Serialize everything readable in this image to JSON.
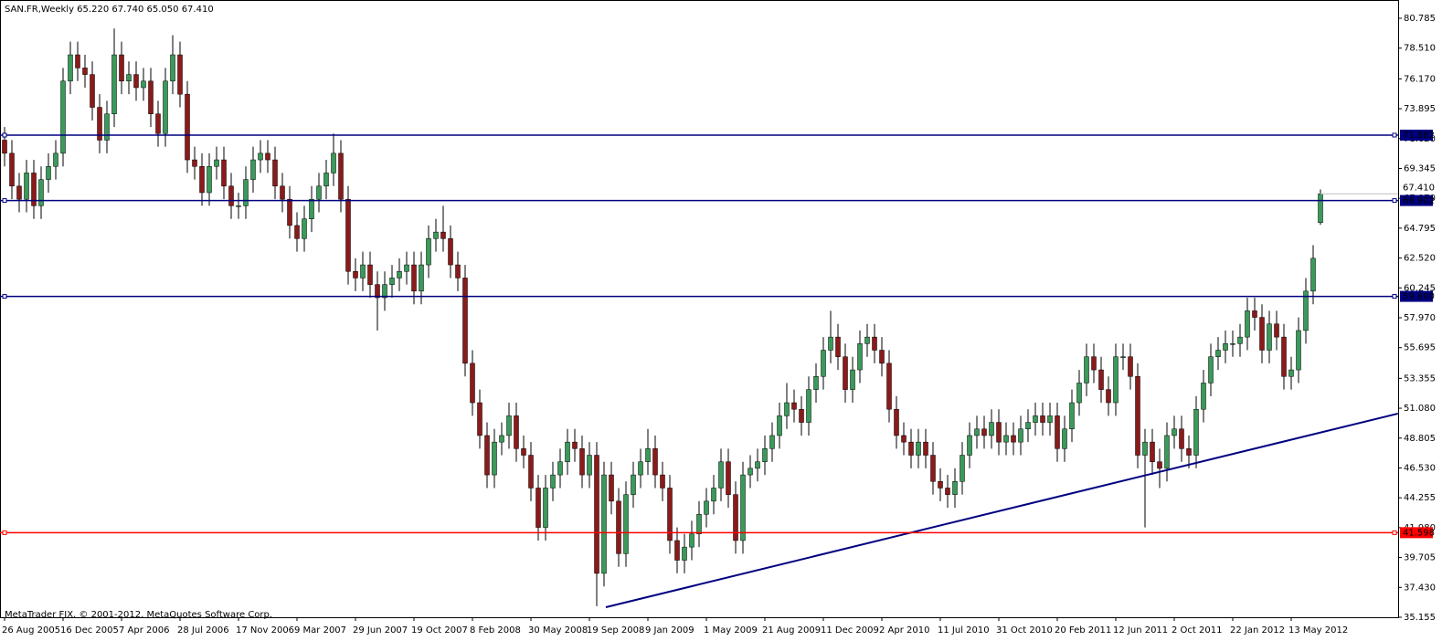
{
  "chart_data": {
    "type": "candlestick",
    "title": "SAN.FR,Weekly  65.220 67.740 65.050 67.410",
    "footer": "MetaTrader FIX, © 2001-2012, MetaQuotes Software Corp.",
    "up_color": "#3a9a5a",
    "down_color": "#8b1a1a",
    "wick_color": "#000000",
    "categories": [
      "26 Aug 2005",
      null,
      null,
      null,
      null,
      null,
      null,
      null,
      "16 Dec 2005",
      null,
      null,
      null,
      null,
      null,
      null,
      null,
      "7 Apr 2006",
      null,
      null,
      null,
      null,
      null,
      null,
      null,
      "28 Jul 2006",
      null,
      null,
      null,
      null,
      null,
      null,
      null,
      "17 Nov 2006",
      null,
      null,
      null,
      null,
      null,
      null,
      null,
      "9 Mar 2007",
      null,
      null,
      null,
      null,
      null,
      null,
      null,
      "29 Jun 2007",
      null,
      null,
      null,
      null,
      null,
      null,
      null,
      "19 Oct 2007",
      null,
      null,
      null,
      null,
      null,
      null,
      null,
      "8 Feb 2008",
      null,
      null,
      null,
      null,
      null,
      null,
      null,
      "30 May 2008",
      null,
      null,
      null,
      null,
      null,
      null,
      null,
      "19 Sep 2008",
      null,
      null,
      null,
      null,
      null,
      null,
      null,
      "9 Jan 2009",
      null,
      null,
      null,
      null,
      null,
      null,
      null,
      "1 May 2009",
      null,
      null,
      null,
      null,
      null,
      null,
      null,
      "21 Aug 2009",
      null,
      null,
      null,
      null,
      null,
      null,
      null,
      "11 Dec 2009",
      null,
      null,
      null,
      null,
      null,
      null,
      null,
      "2 Apr 2010",
      null,
      null,
      null,
      null,
      null,
      null,
      null,
      "11 Jul 2010",
      null,
      null,
      null,
      null,
      null,
      null,
      null,
      "31 Oct 2010",
      null,
      null,
      null,
      null,
      null,
      null,
      null,
      "20 Feb 2011",
      null,
      null,
      null,
      null,
      null,
      null,
      null,
      "12 Jun 2011",
      null,
      null,
      null,
      null,
      null,
      null,
      null,
      "2 Oct 2011",
      null,
      null,
      null,
      null,
      null,
      null,
      null,
      "22 Jan 2012",
      null,
      null,
      null,
      null,
      null,
      null,
      null,
      "13 May 2012",
      null,
      null,
      null,
      null
    ],
    "open": [
      71.5,
      70.5,
      68,
      67,
      69,
      66.5,
      68.5,
      69.5,
      70.5,
      76,
      78,
      77,
      76.5,
      74,
      71.5,
      73.5,
      78,
      76,
      76.5,
      75.5,
      76,
      73.5,
      72,
      76,
      78,
      75,
      70,
      69.5,
      67.5,
      69.5,
      70,
      68,
      66.5,
      66.5,
      68.5,
      70,
      70.5,
      70,
      68,
      67,
      65,
      64,
      65.5,
      67,
      68,
      69,
      70.5,
      67,
      61.5,
      61,
      62,
      60.5,
      59.5,
      60.5,
      61,
      61.5,
      62,
      60,
      62,
      64,
      64.5,
      64,
      62,
      61,
      54.5,
      51.5,
      49,
      46,
      48.5,
      49,
      50.5,
      48,
      47.5,
      45,
      42,
      45,
      46,
      47,
      48.5,
      48,
      46,
      47.5,
      38.5,
      46,
      44,
      40,
      44.5,
      46,
      47,
      48,
      46,
      45,
      41,
      39.5,
      40.5,
      41.5,
      43,
      44,
      45,
      47,
      44.5,
      41,
      46,
      46.5,
      47,
      48,
      49,
      50.5,
      51.5,
      51,
      50,
      52.5,
      53.5,
      55.5,
      56.5,
      55,
      52.5,
      54,
      56,
      56.5,
      55.5,
      54.5,
      51,
      49,
      48.5,
      47.5,
      48.5,
      47.5,
      45.5,
      45,
      44.5,
      45.5,
      47.5,
      49,
      49.5,
      49,
      50,
      48.5,
      49,
      48.5,
      49.5,
      50,
      50.5,
      50,
      50.5,
      48,
      49.5,
      51.5,
      53,
      55,
      54,
      52.5,
      51.5,
      55,
      55,
      53.5,
      47.5,
      48.5,
      47,
      46.5,
      49,
      49.5,
      48,
      47.5,
      51,
      53,
      55,
      55.5,
      56,
      56,
      56.5,
      58.5,
      58,
      55.5,
      57.5,
      56.5,
      53.5,
      54,
      57,
      60,
      65.22
    ],
    "high": [
      72.5,
      71.5,
      69,
      70,
      70,
      69.5,
      70.5,
      71.5,
      77,
      79,
      79,
      78,
      77.5,
      75,
      74.5,
      80,
      79,
      77.5,
      77.5,
      77,
      77,
      74.5,
      77,
      79.5,
      79,
      76,
      71,
      70.5,
      70.5,
      71,
      71,
      69,
      67.5,
      69.5,
      71,
      71.5,
      71.5,
      71,
      69,
      68,
      66,
      66.5,
      68,
      69,
      70,
      72,
      71.5,
      68,
      62.5,
      63,
      63,
      61.5,
      61.5,
      62,
      62.5,
      63,
      63,
      63,
      65,
      65.5,
      66.5,
      65,
      63,
      62,
      55.5,
      52.5,
      50,
      49.5,
      50,
      51.5,
      51.5,
      49,
      48.5,
      46,
      46,
      47,
      48,
      49.5,
      49.5,
      49,
      48.5,
      48.5,
      47,
      47,
      45,
      45.5,
      47,
      48,
      49.5,
      49,
      47,
      46,
      42,
      41.5,
      42.5,
      44,
      45,
      46,
      48,
      48,
      45.5,
      47,
      47.5,
      48,
      49,
      50,
      51.5,
      53,
      52.5,
      52,
      53.5,
      54.5,
      56.5,
      58.5,
      57.5,
      56,
      55,
      57,
      57.5,
      57.5,
      56.5,
      55.5,
      52,
      50,
      49.5,
      49.5,
      49.5,
      48.5,
      46.5,
      46,
      46.5,
      48.5,
      50,
      50.5,
      50.5,
      51,
      51,
      50,
      50,
      50.5,
      51,
      51.5,
      51.5,
      51.5,
      51.5,
      50.5,
      52.5,
      54,
      56,
      56,
      55,
      53.5,
      56,
      56,
      56,
      54.5,
      49.5,
      49.5,
      48,
      50,
      50.5,
      50.5,
      49,
      52,
      54,
      56,
      56.5,
      57,
      57,
      57.5,
      59.5,
      59.5,
      59,
      58.5,
      58.5,
      57.5,
      55,
      58,
      61,
      63.5,
      67.74
    ],
    "low": [
      69.5,
      67,
      66,
      66,
      65.5,
      65.5,
      67.5,
      68.5,
      69.5,
      75,
      76,
      75.5,
      73,
      70.5,
      70.5,
      72.5,
      75,
      75,
      74.5,
      74.5,
      72.5,
      71,
      71,
      75,
      74,
      69,
      68.5,
      66.5,
      66.5,
      68.5,
      67,
      65.5,
      65.5,
      65.5,
      67.5,
      69,
      69,
      67,
      66,
      64,
      63,
      63,
      64.5,
      66,
      67,
      68,
      66,
      60.5,
      60,
      60,
      59.5,
      57,
      58.5,
      59.5,
      60,
      60.5,
      59,
      59,
      61,
      63,
      63,
      61,
      60,
      53.5,
      50.5,
      48,
      45,
      45,
      47.5,
      48,
      47,
      46.5,
      44,
      41,
      41,
      44,
      45,
      46,
      47,
      45,
      45,
      36,
      37.5,
      43,
      39,
      39,
      43.5,
      45,
      46,
      45,
      44,
      40,
      38.5,
      38.5,
      39.5,
      40.5,
      42,
      43,
      44,
      43.5,
      40,
      40,
      45,
      45.5,
      46,
      47,
      48,
      49.5,
      50,
      49,
      49,
      51.5,
      52.5,
      54.5,
      54,
      51.5,
      51.5,
      53,
      55,
      54.5,
      53.5,
      50,
      48,
      47.5,
      46.5,
      46.5,
      46.5,
      44.5,
      44,
      43.5,
      43.5,
      44.5,
      46.5,
      48,
      48,
      48,
      47.5,
      47.5,
      47.5,
      47.5,
      48.5,
      49,
      49,
      49,
      47,
      47,
      48.5,
      50.5,
      52,
      53,
      51.5,
      50.5,
      50.5,
      54,
      52.5,
      46.5,
      42,
      46,
      45,
      45.5,
      48,
      47,
      46.5,
      46.5,
      50,
      52,
      54,
      54.5,
      55,
      55,
      55.5,
      57,
      54.5,
      54.5,
      55.5,
      52.5,
      52.5,
      53,
      56,
      59,
      65.05
    ],
    "close": [
      70.5,
      68,
      67,
      69,
      66.5,
      68.5,
      69.5,
      70.5,
      76,
      78,
      77,
      76.5,
      74,
      71.5,
      73.5,
      78,
      76,
      76.5,
      75.5,
      76,
      73.5,
      72,
      76,
      78,
      75,
      70,
      69.5,
      67.5,
      69.5,
      70,
      68,
      66.5,
      66.5,
      68.5,
      70,
      70.5,
      70,
      68,
      67,
      65,
      64,
      65.5,
      67,
      68,
      69,
      70.5,
      67,
      61.5,
      61,
      62,
      60.5,
      59.5,
      60.5,
      61,
      61.5,
      62,
      60,
      62,
      64,
      64.5,
      64,
      62,
      61,
      54.5,
      51.5,
      49,
      46,
      48.5,
      49,
      50.5,
      48,
      47.5,
      45,
      42,
      45,
      46,
      47,
      48.5,
      48,
      46,
      47.5,
      38.5,
      46,
      44,
      40,
      44.5,
      46,
      47,
      48,
      46,
      45,
      41,
      39.5,
      40.5,
      41.5,
      43,
      44,
      45,
      47,
      44.5,
      41,
      46,
      46.5,
      47,
      48,
      49,
      50.5,
      51.5,
      51,
      50,
      52.5,
      53.5,
      55.5,
      56.5,
      55,
      52.5,
      54,
      56,
      56.5,
      55.5,
      54.5,
      51,
      49,
      48.5,
      47.5,
      48.5,
      47.5,
      45.5,
      45,
      44.5,
      45.5,
      47.5,
      49,
      49.5,
      49,
      50,
      48.5,
      49,
      48.5,
      49.5,
      50,
      50.5,
      50,
      50.5,
      48,
      49.5,
      51.5,
      53,
      55,
      54,
      52.5,
      51.5,
      55,
      55,
      53.5,
      47.5,
      48.5,
      47,
      46.5,
      49,
      49.5,
      48,
      47.5,
      51,
      53,
      55,
      55.5,
      56,
      56,
      56.5,
      58.5,
      58,
      55.5,
      57.5,
      56.5,
      53.5,
      54,
      57,
      60,
      62.5,
      67.41
    ],
    "ylim": [
      35.155,
      80.785
    ],
    "yticks": [
      80.785,
      {
        "value": 78.51,
        "label": "78.510"
      },
      {
        "value": 76.17,
        "label": "76.170"
      },
      73.895,
      {
        "value": 71.62,
        "label": "71.620"
      },
      69.345,
      {
        "value": 67.07,
        "label": "67.070"
      },
      64.795,
      {
        "value": 62.52,
        "label": "62.520"
      },
      60.245,
      {
        "value": 57.97,
        "label": "57.970"
      },
      55.695,
      53.355,
      {
        "value": 51.08,
        "label": "51.080"
      },
      48.805,
      {
        "value": 46.53,
        "label": "46.530"
      },
      44.255,
      {
        "value": 41.98,
        "label": "41.980"
      },
      39.705,
      {
        "value": 37.43,
        "label": "37.430"
      },
      35.155
    ],
    "hlines": [
      {
        "value": 71.882,
        "color": "#000080"
      },
      {
        "value": 66.902,
        "color": "#000080"
      },
      {
        "value": 59.6,
        "label": "59.600",
        "color": "#000080"
      },
      {
        "value": 41.598,
        "color": "#ff0000"
      }
    ],
    "last_price": {
      "value": 67.41,
      "label": "67.410",
      "color": "#c0c0c0"
    },
    "trendline": {
      "x": [
        82.25,
        190.6
      ],
      "y": [
        35.92,
        50.67
      ],
      "color": "#000080"
    }
  }
}
